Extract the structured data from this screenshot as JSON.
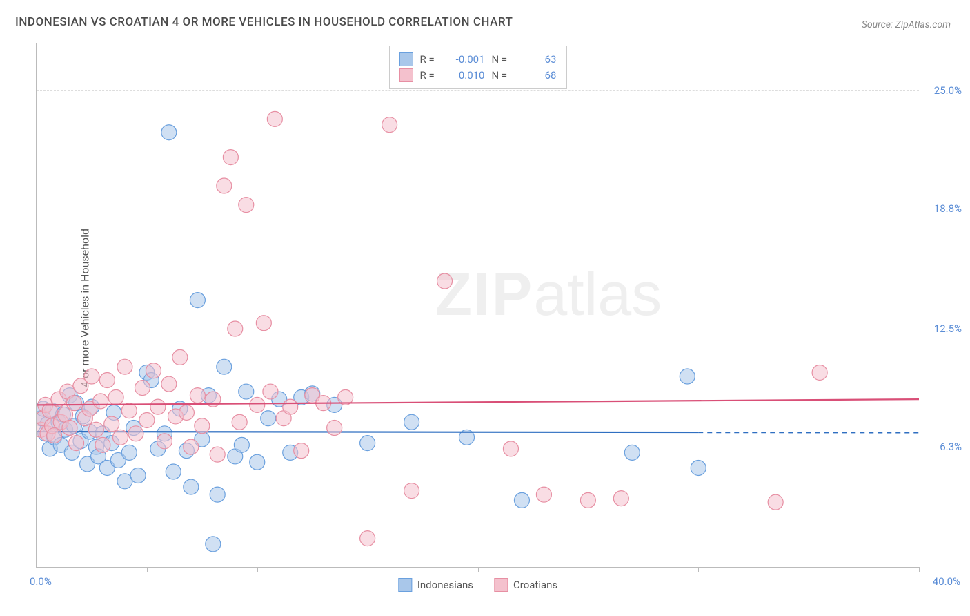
{
  "title": "INDONESIAN VS CROATIAN 4 OR MORE VEHICLES IN HOUSEHOLD CORRELATION CHART",
  "source": "Source: ZipAtlas.com",
  "watermark": {
    "bold": "ZIP",
    "rest": "atlas"
  },
  "y_axis_label": "4 or more Vehicles in Household",
  "axes": {
    "xlim": [
      0,
      40
    ],
    "ylim": [
      0,
      27.5
    ],
    "x_origin_label": "0.0%",
    "x_max_label": "40.0%",
    "x_tick_step": 5,
    "y_ticks": [
      {
        "v": 6.3,
        "label": "6.3%"
      },
      {
        "v": 12.5,
        "label": "12.5%"
      },
      {
        "v": 18.8,
        "label": "18.8%"
      },
      {
        "v": 25.0,
        "label": "25.0%"
      }
    ],
    "grid_color": "#dddddd",
    "axis_color": "#bbbbbb",
    "tick_label_color": "#5b8dd6"
  },
  "series": [
    {
      "id": "indonesians",
      "name": "Indonesians",
      "fill": "#a9c7ea",
      "stroke": "#6aa0de",
      "line_color": "#2f6fc1",
      "fill_opacity": 0.55,
      "marker_radius": 11,
      "R_label": "R =",
      "R_value": "-0.001",
      "N_label": "N =",
      "N_value": "63",
      "trend": {
        "y_at_x0": 7.1,
        "y_at_x40": 7.05,
        "dash_after_x": 30
      },
      "points": [
        [
          0.2,
          7.8
        ],
        [
          0.3,
          8.3
        ],
        [
          0.4,
          7.0
        ],
        [
          0.5,
          7.5
        ],
        [
          0.6,
          6.2
        ],
        [
          0.7,
          8.2
        ],
        [
          0.8,
          6.8
        ],
        [
          1.0,
          7.6
        ],
        [
          1.1,
          6.4
        ],
        [
          1.2,
          8.0
        ],
        [
          1.3,
          7.2
        ],
        [
          1.5,
          9.0
        ],
        [
          1.6,
          6.0
        ],
        [
          1.7,
          7.4
        ],
        [
          1.8,
          8.6
        ],
        [
          2.0,
          6.6
        ],
        [
          2.1,
          7.9
        ],
        [
          2.3,
          5.4
        ],
        [
          2.4,
          7.1
        ],
        [
          2.5,
          8.4
        ],
        [
          2.7,
          6.3
        ],
        [
          2.8,
          5.8
        ],
        [
          3.0,
          7.0
        ],
        [
          3.2,
          5.2
        ],
        [
          3.4,
          6.5
        ],
        [
          3.5,
          8.1
        ],
        [
          3.7,
          5.6
        ],
        [
          4.0,
          4.5
        ],
        [
          4.2,
          6.0
        ],
        [
          4.4,
          7.3
        ],
        [
          4.6,
          4.8
        ],
        [
          5.0,
          10.2
        ],
        [
          5.2,
          9.8
        ],
        [
          5.5,
          6.2
        ],
        [
          5.8,
          7.0
        ],
        [
          6.0,
          22.8
        ],
        [
          6.2,
          5.0
        ],
        [
          6.5,
          8.3
        ],
        [
          6.8,
          6.1
        ],
        [
          7.0,
          4.2
        ],
        [
          7.3,
          14.0
        ],
        [
          7.5,
          6.7
        ],
        [
          7.8,
          9.0
        ],
        [
          8.0,
          1.2
        ],
        [
          8.2,
          3.8
        ],
        [
          8.5,
          10.5
        ],
        [
          9.0,
          5.8
        ],
        [
          9.3,
          6.4
        ],
        [
          9.5,
          9.2
        ],
        [
          10.0,
          5.5
        ],
        [
          10.5,
          7.8
        ],
        [
          11.0,
          8.8
        ],
        [
          11.5,
          6.0
        ],
        [
          12.0,
          8.9
        ],
        [
          12.5,
          9.1
        ],
        [
          13.5,
          8.5
        ],
        [
          15.0,
          6.5
        ],
        [
          17.0,
          7.6
        ],
        [
          19.5,
          6.8
        ],
        [
          22.0,
          3.5
        ],
        [
          27.0,
          6.0
        ],
        [
          29.5,
          10.0
        ],
        [
          30.0,
          5.2
        ]
      ]
    },
    {
      "id": "croatians",
      "name": "Croatians",
      "fill": "#f4c1cd",
      "stroke": "#e78fa3",
      "line_color": "#d94f77",
      "fill_opacity": 0.55,
      "marker_radius": 11,
      "R_label": "R =",
      "R_value": "0.010",
      "N_label": "N =",
      "N_value": "68",
      "trend": {
        "y_at_x0": 8.5,
        "y_at_x40": 8.8,
        "dash_after_x": 40
      },
      "points": [
        [
          0.2,
          7.2
        ],
        [
          0.3,
          7.8
        ],
        [
          0.4,
          8.5
        ],
        [
          0.5,
          7.0
        ],
        [
          0.6,
          8.2
        ],
        [
          0.7,
          7.4
        ],
        [
          0.8,
          6.9
        ],
        [
          1.0,
          8.8
        ],
        [
          1.1,
          7.6
        ],
        [
          1.3,
          8.0
        ],
        [
          1.4,
          9.2
        ],
        [
          1.5,
          7.3
        ],
        [
          1.7,
          8.6
        ],
        [
          1.8,
          6.5
        ],
        [
          2.0,
          9.5
        ],
        [
          2.2,
          7.8
        ],
        [
          2.4,
          8.3
        ],
        [
          2.5,
          10.0
        ],
        [
          2.7,
          7.2
        ],
        [
          2.9,
          8.7
        ],
        [
          3.0,
          6.4
        ],
        [
          3.2,
          9.8
        ],
        [
          3.4,
          7.5
        ],
        [
          3.6,
          8.9
        ],
        [
          3.8,
          6.8
        ],
        [
          4.0,
          10.5
        ],
        [
          4.2,
          8.2
        ],
        [
          4.5,
          7.0
        ],
        [
          4.8,
          9.4
        ],
        [
          5.0,
          7.7
        ],
        [
          5.3,
          10.3
        ],
        [
          5.5,
          8.4
        ],
        [
          5.8,
          6.6
        ],
        [
          6.0,
          9.6
        ],
        [
          6.3,
          7.9
        ],
        [
          6.5,
          11.0
        ],
        [
          6.8,
          8.1
        ],
        [
          7.0,
          6.3
        ],
        [
          7.3,
          9.0
        ],
        [
          7.5,
          7.4
        ],
        [
          8.0,
          8.8
        ],
        [
          8.2,
          5.9
        ],
        [
          8.5,
          20.0
        ],
        [
          8.8,
          21.5
        ],
        [
          9.0,
          12.5
        ],
        [
          9.2,
          7.6
        ],
        [
          9.5,
          19.0
        ],
        [
          10.0,
          8.5
        ],
        [
          10.3,
          12.8
        ],
        [
          10.6,
          9.2
        ],
        [
          10.8,
          23.5
        ],
        [
          11.2,
          7.8
        ],
        [
          11.5,
          8.4
        ],
        [
          12.0,
          6.1
        ],
        [
          12.5,
          9.0
        ],
        [
          13.0,
          8.6
        ],
        [
          13.5,
          7.3
        ],
        [
          14.0,
          8.9
        ],
        [
          15.0,
          1.5
        ],
        [
          16.0,
          23.2
        ],
        [
          17.0,
          4.0
        ],
        [
          18.5,
          15.0
        ],
        [
          21.5,
          6.2
        ],
        [
          23.0,
          3.8
        ],
        [
          25.0,
          3.5
        ],
        [
          26.5,
          3.6
        ],
        [
          33.5,
          3.4
        ],
        [
          35.5,
          10.2
        ]
      ]
    }
  ],
  "legend_bottom": [
    {
      "series": "indonesians",
      "label": "Indonesians"
    },
    {
      "series": "croatians",
      "label": "Croatians"
    }
  ],
  "style": {
    "background_color": "#ffffff",
    "title_fontsize": 17,
    "label_fontsize": 16,
    "tick_fontsize": 15,
    "watermark_fontsize": 88,
    "watermark_color": "rgba(120,120,120,0.12)"
  }
}
